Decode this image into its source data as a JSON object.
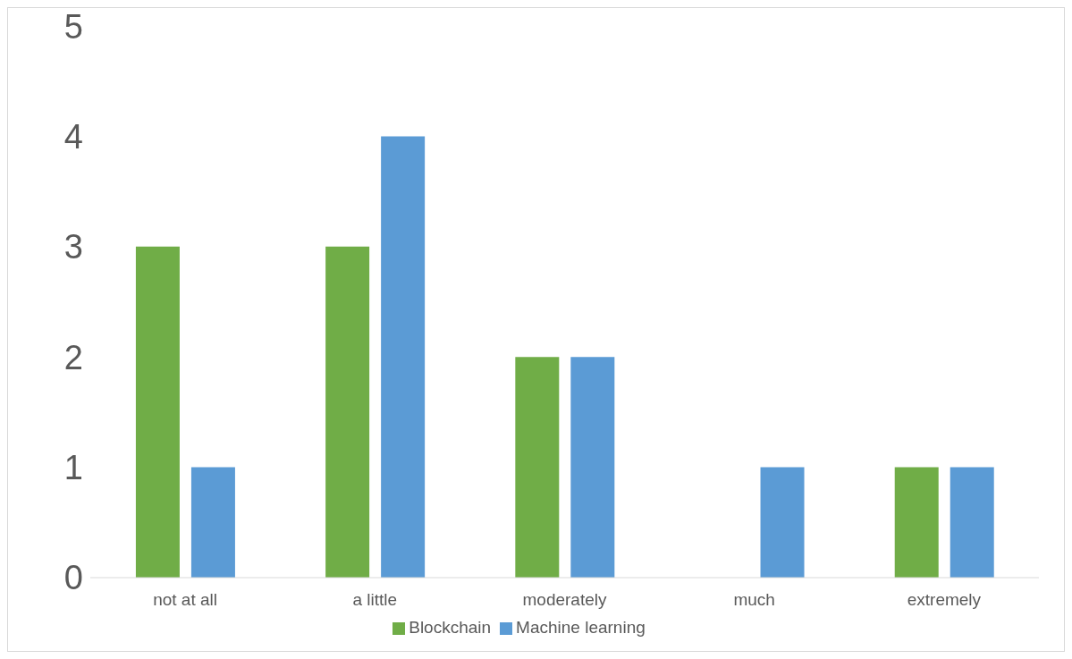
{
  "chart_data": {
    "type": "bar",
    "categories": [
      "not at all",
      "a little",
      "moderately",
      "much",
      "extremely"
    ],
    "series": [
      {
        "name": "Blockchain",
        "color": "#70ad47",
        "values": [
          3,
          3,
          2,
          0,
          1
        ]
      },
      {
        "name": "Machine learning",
        "color": "#5b9bd5",
        "values": [
          1,
          4,
          2,
          1,
          1
        ]
      }
    ],
    "ylim": [
      0,
      5
    ],
    "yticks": [
      0,
      1,
      2,
      3,
      4,
      5
    ],
    "legend": "bottom"
  }
}
